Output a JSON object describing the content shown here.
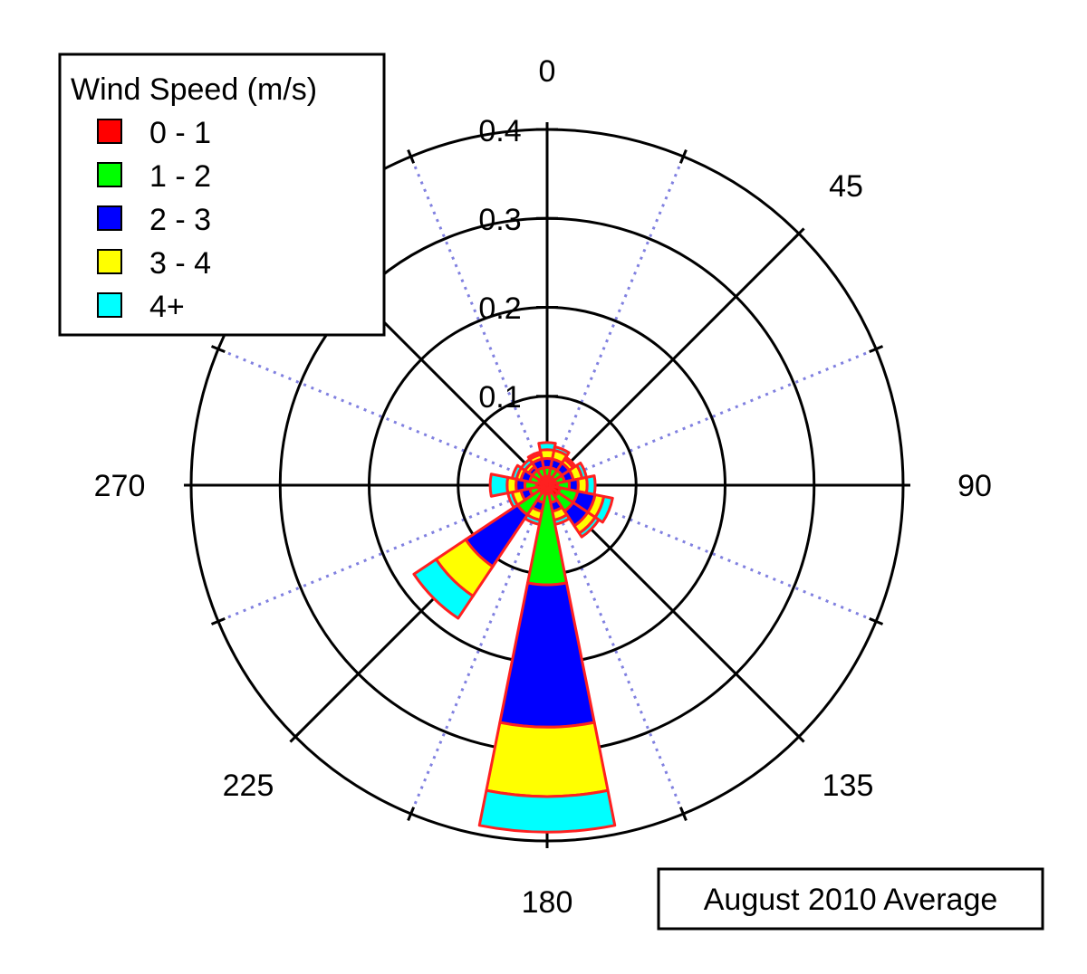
{
  "chart_data": {
    "type": "windrose",
    "subtitle": "August 2010 Average",
    "legend": {
      "title": "Wind Speed (m/s)",
      "placement": "top-left",
      "entries": [
        {
          "label": "0 - 1",
          "color": "#ff0000"
        },
        {
          "label": "1 - 2",
          "color": "#00ff00"
        },
        {
          "label": "2 - 3",
          "color": "#0000ff"
        },
        {
          "label": "3 - 4",
          "color": "#ffff00"
        },
        {
          "label": "4+",
          "color": "#00ffff"
        }
      ]
    },
    "angle_labels": [
      "0",
      "45",
      "90",
      "135",
      "180",
      "225",
      "270"
    ],
    "radial_ticks": [
      "0.1",
      "0.2",
      "0.3",
      "0.4"
    ],
    "radial_max": 0.4,
    "outline_color": "#ff2020",
    "bin_width_deg": 22.5,
    "sectors": [
      {
        "direction": 0,
        "cumulative": [
          0.01,
          0.02,
          0.03,
          0.04,
          0.048
        ]
      },
      {
        "direction": 22.5,
        "cumulative": [
          0.01,
          0.02,
          0.03,
          0.04,
          0.044
        ]
      },
      {
        "direction": 45,
        "cumulative": [
          0.01,
          0.02,
          0.03,
          0.035,
          0.038
        ]
      },
      {
        "direction": 67.5,
        "cumulative": [
          0.01,
          0.02,
          0.03,
          0.04,
          0.045
        ]
      },
      {
        "direction": 90,
        "cumulative": [
          0.012,
          0.025,
          0.035,
          0.045,
          0.054
        ]
      },
      {
        "direction": 112.5,
        "cumulative": [
          0.015,
          0.035,
          0.055,
          0.065,
          0.075
        ]
      },
      {
        "direction": 135,
        "cumulative": [
          0.015,
          0.035,
          0.055,
          0.065,
          0.07
        ]
      },
      {
        "direction": 157.5,
        "cumulative": [
          0.01,
          0.02,
          0.03,
          0.04,
          0.045
        ]
      },
      {
        "direction": 180,
        "cumulative": [
          0.01,
          0.112,
          0.272,
          0.35,
          0.39
        ]
      },
      {
        "direction": 202.5,
        "cumulative": [
          0.01,
          0.02,
          0.03,
          0.04,
          0.045
        ]
      },
      {
        "direction": 225,
        "cumulative": [
          0.01,
          0.04,
          0.11,
          0.15,
          0.18
        ]
      },
      {
        "direction": 247.5,
        "cumulative": [
          0.01,
          0.02,
          0.03,
          0.04,
          0.045
        ]
      },
      {
        "direction": 270,
        "cumulative": [
          0.012,
          0.025,
          0.035,
          0.045,
          0.064
        ]
      },
      {
        "direction": 292.5,
        "cumulative": [
          0.01,
          0.02,
          0.03,
          0.035,
          0.04
        ]
      },
      {
        "direction": 315,
        "cumulative": [
          0.01,
          0.02,
          0.025,
          0.03,
          0.035
        ]
      },
      {
        "direction": 337.5,
        "cumulative": [
          0.01,
          0.02,
          0.03,
          0.035,
          0.038
        ]
      }
    ]
  }
}
